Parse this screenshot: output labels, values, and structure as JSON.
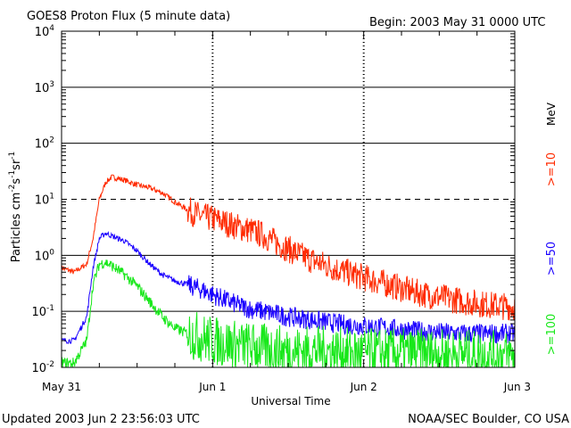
{
  "header": {
    "title": "GOES8 Proton Flux (5 minute data)",
    "begin": "Begin: 2003 May 31 0000 UTC"
  },
  "footer": {
    "updated": "Updated 2003 Jun  2 23:56:03 UTC",
    "source": "NOAA/SEC Boulder, CO USA"
  },
  "chart_data": {
    "type": "line",
    "title": "GOES8 Proton Flux (5 minute data)",
    "xlabel": "Universal Time",
    "ylabel": "Particles cm-2s-1sr-1",
    "x_unit": "hours since 2003 May 31 0000 UTC",
    "xlim": [
      0,
      72
    ],
    "ylim": [
      0.01,
      10000
    ],
    "y_scale": "log",
    "x_ticks": [
      {
        "value": 0,
        "label": "May 31"
      },
      {
        "value": 24,
        "label": "Jun 1"
      },
      {
        "value": 48,
        "label": "Jun 2"
      },
      {
        "value": 72,
        "label": "Jun 3"
      }
    ],
    "y_ticks": [
      {
        "value": 0.01,
        "base": "10",
        "exp": "-2"
      },
      {
        "value": 0.1,
        "base": "10",
        "exp": "-1"
      },
      {
        "value": 1,
        "base": "10",
        "exp": "0"
      },
      {
        "value": 10,
        "base": "10",
        "exp": "1"
      },
      {
        "value": 100,
        "base": "10",
        "exp": "2"
      },
      {
        "value": 1000,
        "base": "10",
        "exp": "3"
      },
      {
        "value": 10000,
        "base": "10",
        "exp": "4"
      }
    ],
    "threshold_line": {
      "value": 10,
      "style": "dashed"
    },
    "right_label_unit": "MeV",
    "series": [
      {
        "name": ">=10",
        "color": "#ff2a00",
        "x": [
          0,
          2,
          4,
          5,
          6,
          7,
          8,
          10,
          12,
          14,
          16,
          18,
          20,
          22,
          24,
          26,
          28,
          30,
          32,
          34,
          36,
          38,
          40,
          44,
          48,
          52,
          56,
          60,
          64,
          68,
          72
        ],
        "y": [
          0.6,
          0.5,
          0.7,
          2.0,
          10,
          20,
          25,
          22,
          18,
          16,
          13,
          9,
          6.5,
          5.0,
          4.5,
          3.8,
          3.2,
          2.8,
          2.3,
          1.7,
          1.3,
          1.0,
          0.8,
          0.55,
          0.4,
          0.3,
          0.22,
          0.18,
          0.15,
          0.13,
          0.12
        ]
      },
      {
        "name": ">=50",
        "color": "#1a00ff",
        "x": [
          0,
          2,
          4,
          5,
          6,
          7,
          8,
          10,
          12,
          14,
          16,
          18,
          20,
          22,
          24,
          26,
          28,
          30,
          32,
          34,
          36,
          40,
          44,
          48,
          52,
          56,
          60,
          64,
          68,
          72
        ],
        "y": [
          0.03,
          0.03,
          0.08,
          0.6,
          2.0,
          2.5,
          2.2,
          1.8,
          1.2,
          0.7,
          0.45,
          0.35,
          0.3,
          0.25,
          0.2,
          0.16,
          0.13,
          0.11,
          0.1,
          0.09,
          0.08,
          0.07,
          0.06,
          0.055,
          0.05,
          0.045,
          0.042,
          0.04,
          0.04,
          0.04
        ]
      },
      {
        "name": ">=100",
        "color": "#18e81a",
        "x": [
          0,
          2,
          4,
          5,
          6,
          7,
          8,
          10,
          12,
          14,
          16,
          18,
          20,
          24,
          28,
          32,
          36,
          40,
          48,
          56,
          64,
          72
        ],
        "y": [
          0.012,
          0.012,
          0.03,
          0.3,
          0.7,
          0.75,
          0.65,
          0.45,
          0.28,
          0.15,
          0.08,
          0.05,
          0.04,
          0.03,
          0.025,
          0.022,
          0.02,
          0.02,
          0.018,
          0.018,
          0.017,
          0.016
        ]
      }
    ]
  }
}
